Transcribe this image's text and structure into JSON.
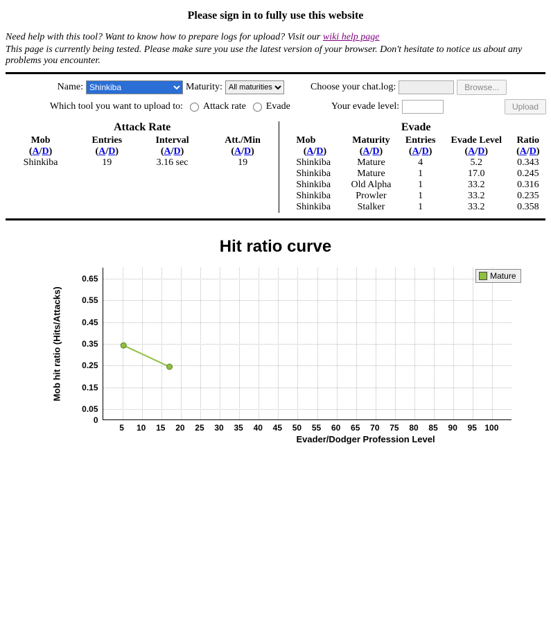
{
  "header": {
    "title": "Please sign in to fully use this website",
    "notice1_prefix": "Need help with this tool? Want to know how to prepare logs for upload? Visit our ",
    "notice1_link": "wiki help page",
    "notice2": "This page is currently being tested. Please make sure you use the latest version of your browser. Don't hesitate to notice us about any problems you encounter."
  },
  "form": {
    "name_label": "Name:",
    "name_value": "Shinkiba",
    "maturity_label": "Maturity:",
    "maturity_value": "All maturities",
    "chatlog_label": "Choose your chat.log:",
    "browse_btn": "Browse...",
    "tool_label": "Which tool you want to upload to:",
    "radio_attack": "Attack rate",
    "radio_evade": "Evade",
    "evadelvl_label": "Your evade level:",
    "upload_btn": "Upload"
  },
  "sort": {
    "a": "A",
    "sep": "/",
    "d": "D"
  },
  "attack_rate_table": {
    "title": "Attack Rate",
    "headers": [
      "Mob",
      "Entries",
      "Interval",
      "Att./Min"
    ],
    "rows": [
      {
        "mob": "Shinkiba",
        "entries": "19",
        "interval": "3.16 sec",
        "attmin": "19"
      }
    ]
  },
  "evade_table": {
    "title": "Evade",
    "headers": [
      "Mob",
      "Maturity",
      "Entries",
      "Evade Level",
      "Ratio"
    ],
    "rows": [
      {
        "mob": "Shinkiba",
        "maturity": "Mature",
        "entries": "4",
        "evade": "5.2",
        "ratio": "0.343"
      },
      {
        "mob": "Shinkiba",
        "maturity": "Mature",
        "entries": "1",
        "evade": "17.0",
        "ratio": "0.245"
      },
      {
        "mob": "Shinkiba",
        "maturity": "Old Alpha",
        "entries": "1",
        "evade": "33.2",
        "ratio": "0.316"
      },
      {
        "mob": "Shinkiba",
        "maturity": "Prowler",
        "entries": "1",
        "evade": "33.2",
        "ratio": "0.235"
      },
      {
        "mob": "Shinkiba",
        "maturity": "Stalker",
        "entries": "1",
        "evade": "33.2",
        "ratio": "0.358"
      }
    ]
  },
  "chart": {
    "title": "Hit ratio curve",
    "type": "line",
    "xlabel": "Evader/Dodger Profession Level",
    "ylabel": "Mob hit ratio (Hits/Attacks)",
    "xlim": [
      0,
      105
    ],
    "ylim": [
      0,
      0.7
    ],
    "xticks": [
      5,
      10,
      15,
      20,
      25,
      30,
      35,
      40,
      45,
      50,
      55,
      60,
      65,
      70,
      75,
      80,
      85,
      90,
      95,
      100
    ],
    "yticks": [
      0,
      0.05,
      0.15,
      0.25,
      0.35,
      0.45,
      0.55,
      0.65
    ],
    "grid_color": "#bbbbbb",
    "background_color": "#ffffff",
    "font_family": "Verdana",
    "title_fontsize": 24,
    "label_fontsize": 13,
    "tick_fontsize": 12,
    "legend": {
      "label": "Mature",
      "color": "#8fbf3f",
      "position": "top-right"
    },
    "series": [
      {
        "name": "Mature",
        "color": "#8fbf3f",
        "line_width": 2,
        "marker": "circle",
        "marker_size": 4,
        "points": [
          {
            "x": 5.2,
            "y": 0.343
          },
          {
            "x": 17.0,
            "y": 0.245
          }
        ]
      }
    ]
  }
}
